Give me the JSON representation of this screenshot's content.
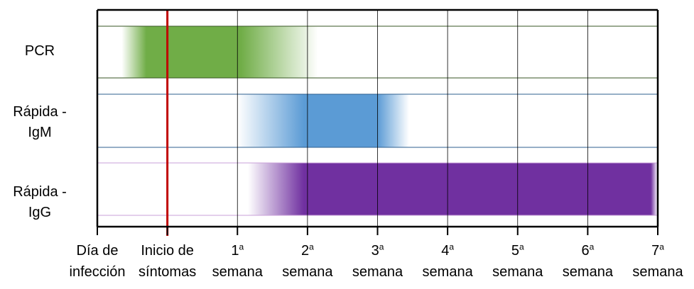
{
  "chart_data": {
    "type": "gantt",
    "x_ticks": [
      {
        "x": -1,
        "line1": "Día de",
        "line2": "infección"
      },
      {
        "x": 0,
        "line1": "Inicio de",
        "line2": "síntomas"
      },
      {
        "x": 1,
        "line1": "1",
        "sup": "a",
        "line2": "semana"
      },
      {
        "x": 2,
        "line1": "2",
        "sup": "a",
        "line2": "semana"
      },
      {
        "x": 3,
        "line1": "3",
        "sup": "a",
        "line2": "semana"
      },
      {
        "x": 4,
        "line1": "4",
        "sup": "a",
        "line2": "semana"
      },
      {
        "x": 5,
        "line1": "5",
        "sup": "a",
        "line2": "semana"
      },
      {
        "x": 6,
        "line1": "6",
        "sup": "a",
        "line2": "semana"
      },
      {
        "x": 7,
        "line1": "7",
        "sup": "a",
        "line2": "semana"
      }
    ],
    "xlim": [
      -1,
      7
    ],
    "reference_line": {
      "x": 0,
      "color": "#c00000"
    },
    "series": [
      {
        "name": "PCR",
        "label_lines": [
          "PCR"
        ],
        "color": "#70ad47",
        "edge_color": "#375623",
        "fade_in": [
          -0.65,
          -0.3
        ],
        "solid": [
          -0.3,
          1.05
        ],
        "fade_out": [
          1.05,
          2.15
        ]
      },
      {
        "name": "Rápida - IgM",
        "label_lines": [
          "Rápida -",
          "IgM"
        ],
        "color": "#5b9bd5",
        "edge_color": "#2e5f8f",
        "fade_in": [
          1.0,
          1.95
        ],
        "solid": [
          1.95,
          3.0
        ],
        "fade_out": [
          3.0,
          3.45
        ]
      },
      {
        "name": "Rápida - IgG",
        "label_lines": [
          "Rápida -",
          "IgG"
        ],
        "color": "#7030a0",
        "edge_color": "#c9a0d8",
        "fade_in": [
          1.15,
          1.95
        ],
        "solid": [
          1.95,
          6.9
        ],
        "fade_out": [
          6.9,
          7.0
        ]
      }
    ]
  }
}
